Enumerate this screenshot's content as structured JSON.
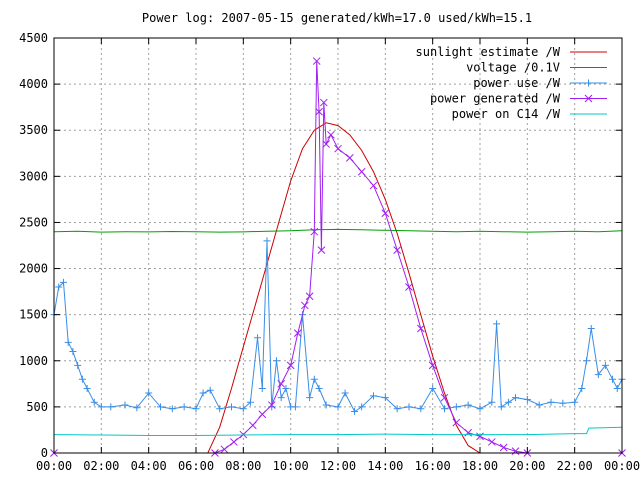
{
  "chart_data": {
    "type": "line",
    "title": "Power log: 2007-05-15 generated/kWh=17.0 used/kWh=15.1",
    "xlabel": "",
    "ylabel": "",
    "xlim": [
      0,
      24
    ],
    "ylim": [
      0,
      4500
    ],
    "grid": true,
    "legend_position": "top-right",
    "x_ticks": [
      "00:00",
      "02:00",
      "04:00",
      "06:00",
      "08:00",
      "10:00",
      "12:00",
      "14:00",
      "16:00",
      "18:00",
      "20:00",
      "22:00",
      "00:00"
    ],
    "y_ticks": [
      0,
      500,
      1000,
      1500,
      2000,
      2500,
      3000,
      3500,
      4000,
      4500
    ],
    "series": [
      {
        "name": "sunlight estimate /W",
        "color": "#cc0000",
        "marker": "none",
        "x": [
          0,
          6.5,
          7.0,
          7.5,
          8.0,
          8.5,
          9.0,
          9.5,
          10.0,
          10.5,
          11.0,
          11.5,
          12.0,
          12.5,
          13.0,
          13.5,
          14.0,
          14.5,
          15.0,
          15.5,
          16.0,
          16.5,
          17.0,
          17.5,
          18.0,
          24
        ],
        "y": [
          0,
          0,
          280,
          700,
          1150,
          1600,
          2050,
          2500,
          2950,
          3300,
          3500,
          3580,
          3550,
          3450,
          3280,
          3050,
          2750,
          2380,
          1950,
          1500,
          1050,
          650,
          300,
          80,
          0,
          0
        ]
      },
      {
        "name": "voltage /0.1V",
        "color": "#00a000",
        "marker": "none",
        "x": [
          0,
          1,
          2,
          3,
          4,
          5,
          6,
          7,
          8,
          9,
          10,
          11,
          12,
          13,
          14,
          15,
          16,
          17,
          18,
          19,
          20,
          21,
          22,
          23,
          24
        ],
        "y": [
          2400,
          2405,
          2395,
          2400,
          2398,
          2402,
          2400,
          2395,
          2398,
          2405,
          2410,
          2420,
          2425,
          2420,
          2415,
          2410,
          2405,
          2400,
          2405,
          2400,
          2395,
          2400,
          2405,
          2400,
          2410
        ]
      },
      {
        "name": "power use /W",
        "color": "#3a8ee6",
        "marker": "plus",
        "x": [
          0,
          0.2,
          0.4,
          0.6,
          0.8,
          1.0,
          1.2,
          1.4,
          1.7,
          2.0,
          2.4,
          3.0,
          3.5,
          4.0,
          4.5,
          5.0,
          5.5,
          6.0,
          6.3,
          6.6,
          7.0,
          7.5,
          8.0,
          8.3,
          8.6,
          8.8,
          9.0,
          9.2,
          9.4,
          9.6,
          9.8,
          10.0,
          10.2,
          10.5,
          10.8,
          11.0,
          11.2,
          11.5,
          12.0,
          12.3,
          12.7,
          13.0,
          13.5,
          14.0,
          14.5,
          15.0,
          15.5,
          16.0,
          16.5,
          17.0,
          17.5,
          18.0,
          18.5,
          18.7,
          18.9,
          19.2,
          19.5,
          20.0,
          20.5,
          21.0,
          21.5,
          22.0,
          22.3,
          22.5,
          22.7,
          23.0,
          23.3,
          23.6,
          23.8,
          24.0
        ],
        "y": [
          1500,
          1800,
          1850,
          1200,
          1100,
          950,
          800,
          700,
          550,
          500,
          500,
          520,
          490,
          650,
          500,
          480,
          500,
          480,
          650,
          680,
          480,
          500,
          480,
          550,
          1250,
          700,
          2300,
          500,
          1000,
          600,
          700,
          500,
          500,
          1500,
          600,
          800,
          700,
          520,
          500,
          650,
          450,
          500,
          620,
          600,
          480,
          500,
          480,
          700,
          480,
          500,
          520,
          480,
          550,
          1400,
          500,
          550,
          600,
          580,
          520,
          550,
          540,
          550,
          700,
          1000,
          1350,
          850,
          950,
          800,
          700,
          800
        ]
      },
      {
        "name": "power generated /W",
        "color": "#a020f0",
        "marker": "cross",
        "x": [
          0,
          6.8,
          7.2,
          7.6,
          8.0,
          8.4,
          8.8,
          9.2,
          9.6,
          10.0,
          10.3,
          10.6,
          10.8,
          11.0,
          11.1,
          11.2,
          11.3,
          11.4,
          11.5,
          11.7,
          12.0,
          12.5,
          13.0,
          13.5,
          14.0,
          14.5,
          15.0,
          15.5,
          16.0,
          16.5,
          17.0,
          17.5,
          18.0,
          18.5,
          19.0,
          19.5,
          20.0,
          24
        ],
        "y": [
          0,
          0,
          40,
          120,
          200,
          300,
          420,
          520,
          750,
          950,
          1300,
          1600,
          1700,
          2400,
          4250,
          3700,
          2200,
          3800,
          3350,
          3450,
          3300,
          3200,
          3050,
          2900,
          2600,
          2200,
          1800,
          1350,
          950,
          600,
          330,
          220,
          180,
          120,
          60,
          20,
          0,
          0
        ]
      },
      {
        "name": "power on C14 /W",
        "color": "#00c8c8",
        "marker": "none",
        "x": [
          0,
          2,
          4,
          6,
          8,
          10,
          12,
          14,
          16,
          18,
          20,
          21,
          22,
          22.5,
          22.6,
          24
        ],
        "y": [
          200,
          195,
          190,
          190,
          195,
          200,
          200,
          205,
          200,
          200,
          200,
          205,
          210,
          210,
          270,
          280
        ]
      }
    ]
  }
}
